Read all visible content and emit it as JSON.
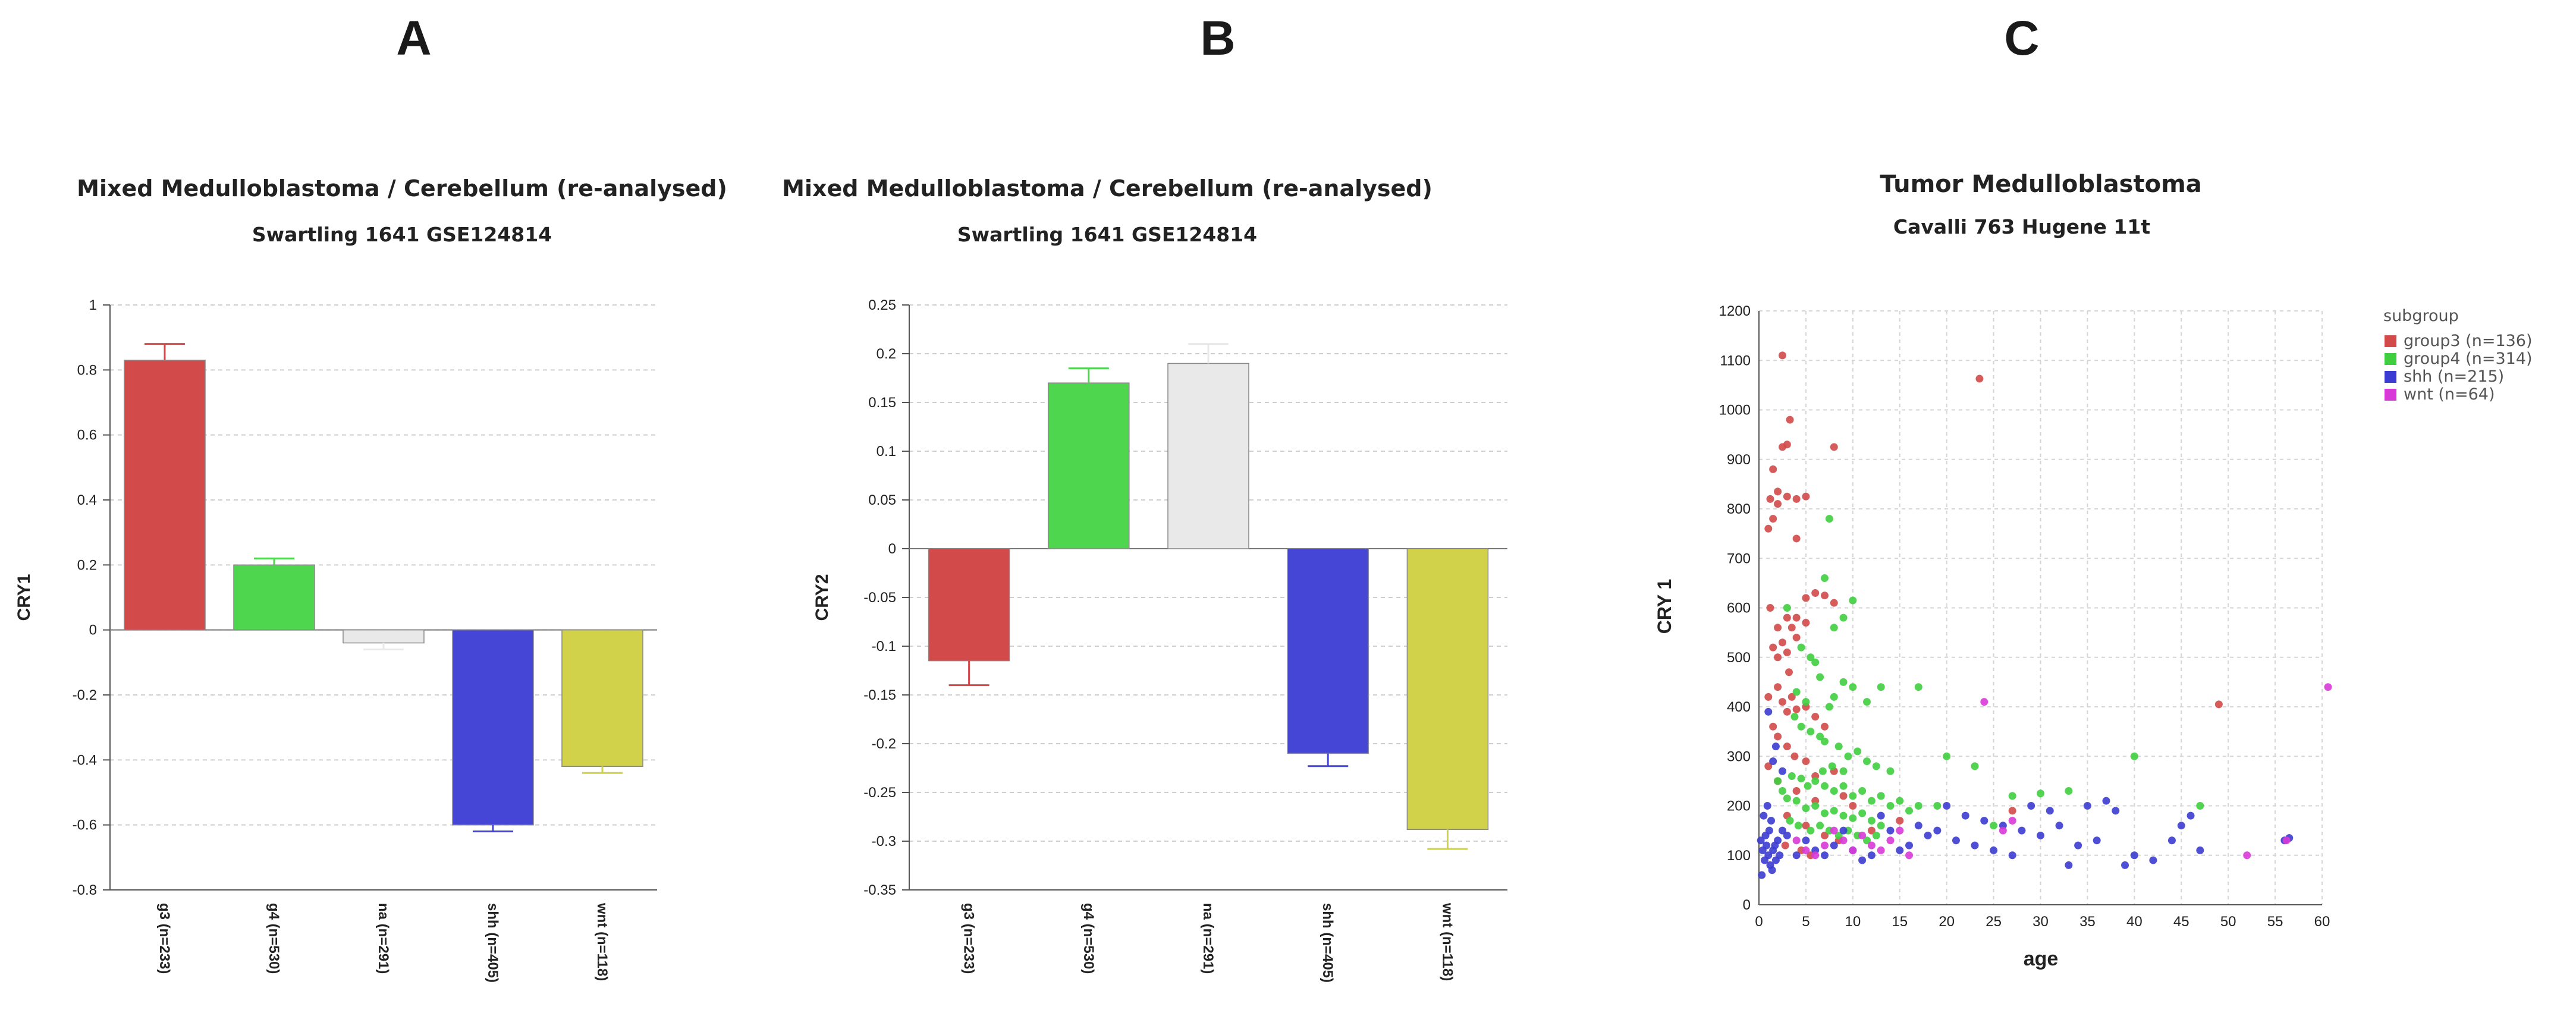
{
  "panels": {
    "a": {
      "letter": "A"
    },
    "b": {
      "letter": "B"
    },
    "c": {
      "letter": "C"
    }
  },
  "colors": {
    "red": "#d24a4a",
    "green": "#4ed64e",
    "gray": "#e9e9e9",
    "blue": "#4646d6",
    "yellow": "#d2d24a",
    "magenta": "#d83ad8"
  },
  "chart_data": [
    {
      "id": "A",
      "type": "bar",
      "title": "Mixed Medulloblastoma / Cerebellum (re-analysed)",
      "subtitle": "Swartling  1641 GSE124814",
      "xlabel": "",
      "ylabel": "CRY1",
      "ylim": [
        -0.8,
        1
      ],
      "yticks": [
        1,
        0.8,
        0.6,
        0.4,
        0.2,
        0,
        -0.2,
        -0.4,
        -0.6,
        -0.8
      ],
      "ytick_labels": [
        "1",
        "0.8",
        "0.6",
        "0.4",
        "0.2",
        "0",
        "-0.2",
        "-0.4",
        "-0.6",
        "-0.8"
      ],
      "grid": true,
      "categories": [
        "g3 (n=233)",
        "g4 (n=530)",
        "na (n=291)",
        "shh (n=405)",
        "wnt (n=118)"
      ],
      "values": [
        0.83,
        0.2,
        -0.04,
        -0.6,
        -0.42
      ],
      "errors": [
        0.05,
        0.02,
        0.02,
        0.02,
        0.02
      ],
      "bar_colors": [
        "#d24a4a",
        "#4ed64e",
        "#e9e9e9",
        "#4646d6",
        "#d2d24a"
      ]
    },
    {
      "id": "B",
      "type": "bar",
      "title": "Mixed Medulloblastoma / Cerebellum (re-analysed)",
      "subtitle": "Swartling  1641 GSE124814",
      "xlabel": "",
      "ylabel": "CRY2",
      "ylim": [
        -0.35,
        0.25
      ],
      "yticks": [
        0.25,
        0.2,
        0.15,
        0.1,
        0.05,
        0,
        -0.05,
        -0.1,
        -0.15,
        -0.2,
        -0.25,
        -0.3,
        -0.35
      ],
      "ytick_labels": [
        "0.25",
        "0.2",
        "0.15",
        "0.1",
        "0.05",
        "0",
        "-0.05",
        "-0.1",
        "-0.15",
        "-0.2",
        "-0.25",
        "-0.3",
        "-0.35"
      ],
      "grid": true,
      "categories": [
        "g3 (n=233)",
        "g4 (n=530)",
        "na (n=291)",
        "shh (n=405)",
        "wnt (n=118)"
      ],
      "values": [
        -0.115,
        0.17,
        0.19,
        -0.21,
        -0.288
      ],
      "errors": [
        0.025,
        0.015,
        0.02,
        0.013,
        0.02
      ],
      "bar_colors": [
        "#d24a4a",
        "#4ed64e",
        "#e9e9e9",
        "#4646d6",
        "#d2d24a"
      ]
    },
    {
      "id": "C",
      "type": "scatter",
      "title": "Tumor Medulloblastoma",
      "subtitle": "Cavalli 763 Hugene 11t",
      "xlabel": "age",
      "ylabel": "CRY 1",
      "xlim": [
        0,
        60
      ],
      "ylim": [
        0,
        1200
      ],
      "xticks": [
        0,
        5,
        10,
        15,
        20,
        25,
        30,
        35,
        40,
        45,
        50,
        55,
        60
      ],
      "xtick_labels": [
        "0",
        "5",
        "10",
        "15",
        "20",
        "25",
        "30",
        "35",
        "40",
        "45",
        "50",
        "55",
        "60"
      ],
      "yticks": [
        0,
        100,
        200,
        300,
        400,
        500,
        600,
        700,
        800,
        900,
        1000,
        1100,
        1200
      ],
      "ytick_labels": [
        "0",
        "100",
        "200",
        "300",
        "400",
        "500",
        "600",
        "700",
        "800",
        "900",
        "1000",
        "1100",
        "1200"
      ],
      "grid": true,
      "legend_title": "subgroup",
      "legend_position": "top-right",
      "series": [
        {
          "name": "group3 (n=136)",
          "color": "#d24a4a",
          "points": [
            [
              2.5,
              1110
            ],
            [
              23.5,
              1063
            ],
            [
              1.5,
              880
            ],
            [
              2.5,
              925
            ],
            [
              3,
              930
            ],
            [
              3.3,
              980
            ],
            [
              8,
              925
            ],
            [
              1.2,
              820
            ],
            [
              2,
              835
            ],
            [
              3,
              825
            ],
            [
              4,
              820
            ],
            [
              5,
              825
            ],
            [
              1,
              760
            ],
            [
              1.5,
              780
            ],
            [
              2,
              810
            ],
            [
              4,
              740
            ],
            [
              5,
              620
            ],
            [
              6,
              630
            ],
            [
              1.2,
              600
            ],
            [
              2,
              560
            ],
            [
              3,
              580
            ],
            [
              3.5,
              560
            ],
            [
              4,
              580
            ],
            [
              5,
              570
            ],
            [
              7,
              625
            ],
            [
              8,
              610
            ],
            [
              1.5,
              520
            ],
            [
              2,
              500
            ],
            [
              2.5,
              530
            ],
            [
              3,
              510
            ],
            [
              3.2,
              470
            ],
            [
              4,
              540
            ],
            [
              1,
              420
            ],
            [
              2,
              440
            ],
            [
              2.5,
              410
            ],
            [
              3,
              390
            ],
            [
              3.5,
              420
            ],
            [
              4,
              395
            ],
            [
              5,
              400
            ],
            [
              6,
              380
            ],
            [
              7,
              360
            ],
            [
              1.5,
              360
            ],
            [
              2,
              340
            ],
            [
              3,
              320
            ],
            [
              3.8,
              300
            ],
            [
              5,
              290
            ],
            [
              6,
              260
            ],
            [
              8,
              270
            ],
            [
              1,
              280
            ],
            [
              2,
              250
            ],
            [
              4,
              230
            ],
            [
              6,
              210
            ],
            [
              9,
              220
            ],
            [
              10,
              200
            ],
            [
              3,
              180
            ],
            [
              5,
              160
            ],
            [
              7,
              140
            ],
            [
              12,
              150
            ],
            [
              15,
              170
            ],
            [
              27,
              190
            ],
            [
              49,
              405
            ],
            [
              2.8,
              120
            ],
            [
              4.5,
              110
            ],
            [
              5.5,
              100
            ],
            [
              8.5,
              130
            ]
          ]
        },
        {
          "name": "group4 (n=314)",
          "color": "#3fce3f",
          "points": [
            [
              7.5,
              780
            ],
            [
              7,
              660
            ],
            [
              10,
              615
            ],
            [
              3,
              600
            ],
            [
              8,
              560
            ],
            [
              9,
              580
            ],
            [
              4.5,
              520
            ],
            [
              5.5,
              500
            ],
            [
              6,
              490
            ],
            [
              6.5,
              460
            ],
            [
              9,
              450
            ],
            [
              10,
              440
            ],
            [
              4,
              430
            ],
            [
              5,
              410
            ],
            [
              7.5,
              400
            ],
            [
              8,
              420
            ],
            [
              11.5,
              410
            ],
            [
              13,
              440
            ],
            [
              17,
              440
            ],
            [
              20,
              300
            ],
            [
              23,
              280
            ],
            [
              27,
              220
            ],
            [
              30,
              225
            ],
            [
              33,
              230
            ],
            [
              40,
              300
            ],
            [
              3.8,
              380
            ],
            [
              4.5,
              360
            ],
            [
              5.5,
              350
            ],
            [
              6.5,
              340
            ],
            [
              7,
              330
            ],
            [
              8.5,
              320
            ],
            [
              9.5,
              300
            ],
            [
              10.5,
              310
            ],
            [
              11.5,
              290
            ],
            [
              12.5,
              280
            ],
            [
              14,
              270
            ],
            [
              3.5,
              260
            ],
            [
              4.5,
              255
            ],
            [
              5.2,
              240
            ],
            [
              6,
              250
            ],
            [
              7,
              240
            ],
            [
              8,
              230
            ],
            [
              9,
              240
            ],
            [
              10,
              220
            ],
            [
              11,
              230
            ],
            [
              12,
              210
            ],
            [
              13,
              220
            ],
            [
              14,
              200
            ],
            [
              15,
              210
            ],
            [
              16,
              190
            ],
            [
              17,
              200
            ],
            [
              4,
              210
            ],
            [
              5,
              195
            ],
            [
              6,
              200
            ],
            [
              7,
              185
            ],
            [
              8,
              190
            ],
            [
              9,
              180
            ],
            [
              10,
              175
            ],
            [
              11,
              185
            ],
            [
              12,
              170
            ],
            [
              13,
              160
            ],
            [
              3.3,
              170
            ],
            [
              4.2,
              160
            ],
            [
              5.5,
              150
            ],
            [
              6.5,
              160
            ],
            [
              7.5,
              150
            ],
            [
              8.5,
              140
            ],
            [
              9.5,
              150
            ],
            [
              10.5,
              140
            ],
            [
              11.5,
              130
            ],
            [
              12.5,
              140
            ],
            [
              2.5,
              230
            ],
            [
              3,
              215
            ],
            [
              2,
              250
            ],
            [
              6.8,
              270
            ],
            [
              7.8,
              280
            ],
            [
              9,
              270
            ],
            [
              47,
              200
            ],
            [
              25,
              160
            ],
            [
              19,
              200
            ]
          ]
        },
        {
          "name": "shh (n=215)",
          "color": "#3c3cd2",
          "points": [
            [
              0.2,
              130
            ],
            [
              0.4,
              110
            ],
            [
              0.6,
              90
            ],
            [
              0.8,
              120
            ],
            [
              1,
              100
            ],
            [
              1.2,
              80
            ],
            [
              1.5,
              110
            ],
            [
              1.8,
              90
            ],
            [
              2,
              130
            ],
            [
              0.3,
              60
            ],
            [
              0.7,
              140
            ],
            [
              1.1,
              150
            ],
            [
              1.4,
              70
            ],
            [
              1.7,
              120
            ],
            [
              2.2,
              100
            ],
            [
              0.5,
              180
            ],
            [
              0.9,
              200
            ],
            [
              1.3,
              170
            ],
            [
              2.5,
              150
            ],
            [
              3,
              140
            ],
            [
              1,
              390
            ],
            [
              1.5,
              290
            ],
            [
              1.8,
              320
            ],
            [
              2.5,
              270
            ],
            [
              20,
              200
            ],
            [
              22,
              180
            ],
            [
              24,
              170
            ],
            [
              26,
              160
            ],
            [
              28,
              150
            ],
            [
              30,
              140
            ],
            [
              32,
              160
            ],
            [
              34,
              120
            ],
            [
              36,
              130
            ],
            [
              38,
              190
            ],
            [
              39,
              80
            ],
            [
              40,
              100
            ],
            [
              42,
              90
            ],
            [
              44,
              130
            ],
            [
              45,
              160
            ],
            [
              46,
              180
            ],
            [
              47,
              110
            ],
            [
              29,
              200
            ],
            [
              31,
              190
            ],
            [
              33,
              80
            ],
            [
              35,
              200
            ],
            [
              37,
              210
            ],
            [
              19,
              150
            ],
            [
              21,
              130
            ],
            [
              23,
              120
            ],
            [
              25,
              110
            ],
            [
              27,
              100
            ],
            [
              17,
              160
            ],
            [
              18,
              140
            ],
            [
              16,
              120
            ],
            [
              15,
              110
            ],
            [
              14,
              150
            ],
            [
              13,
              180
            ],
            [
              12,
              100
            ],
            [
              11,
              90
            ],
            [
              10,
              110
            ],
            [
              9,
              150
            ],
            [
              8,
              120
            ],
            [
              7,
              100
            ],
            [
              6,
              110
            ],
            [
              5,
              130
            ],
            [
              4,
              100
            ],
            [
              56,
              130
            ],
            [
              56.5,
              135
            ]
          ]
        },
        {
          "name": "wnt (n=64)",
          "color": "#d83ad8",
          "points": [
            [
              24,
              410
            ],
            [
              52,
              100
            ],
            [
              56.2,
              130
            ],
            [
              61,
              440
            ],
            [
              8,
              150
            ],
            [
              9,
              130
            ],
            [
              10,
              110
            ],
            [
              11,
              140
            ],
            [
              12,
              120
            ],
            [
              7,
              120
            ],
            [
              6,
              100
            ],
            [
              13,
              110
            ],
            [
              14,
              130
            ],
            [
              15,
              150
            ],
            [
              16,
              100
            ],
            [
              5,
              110
            ],
            [
              4,
              130
            ],
            [
              27,
              170
            ],
            [
              26,
              150
            ]
          ]
        }
      ]
    }
  ]
}
